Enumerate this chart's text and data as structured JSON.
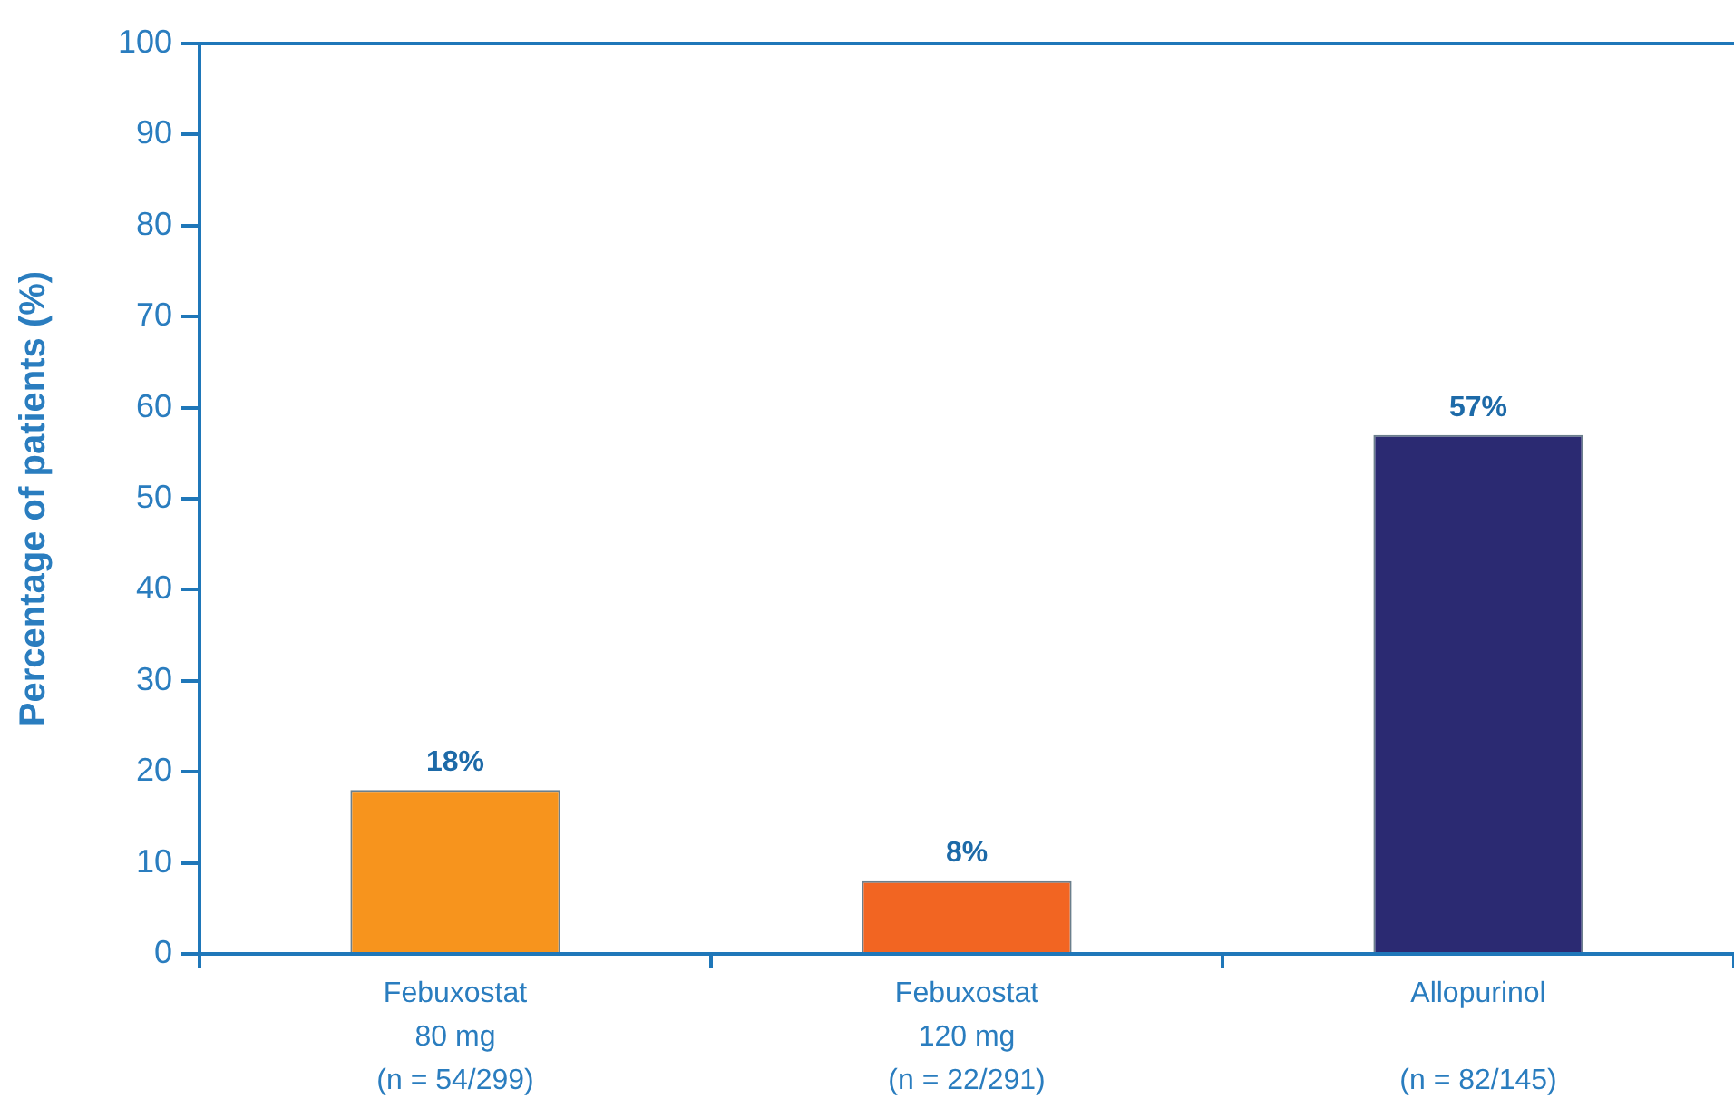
{
  "chart_data": {
    "type": "bar",
    "ylabel": "Percentage of patients (%)",
    "categories": [
      "Febuxostat\n80 mg\n(n = 54/299)",
      "Febuxostat\n120 mg\n(n = 22/291)",
      "Allopurinol\n\n(n = 82/145)"
    ],
    "values": [
      18,
      8,
      57
    ],
    "colors": [
      "#f7941d",
      "#f26522",
      "#2b2a72"
    ],
    "value_labels": [
      "18%",
      "8%",
      "57%"
    ],
    "ylim": [
      0,
      100
    ],
    "yticks": [
      0,
      10,
      20,
      30,
      40,
      50,
      60,
      70,
      80,
      90,
      100
    ]
  }
}
